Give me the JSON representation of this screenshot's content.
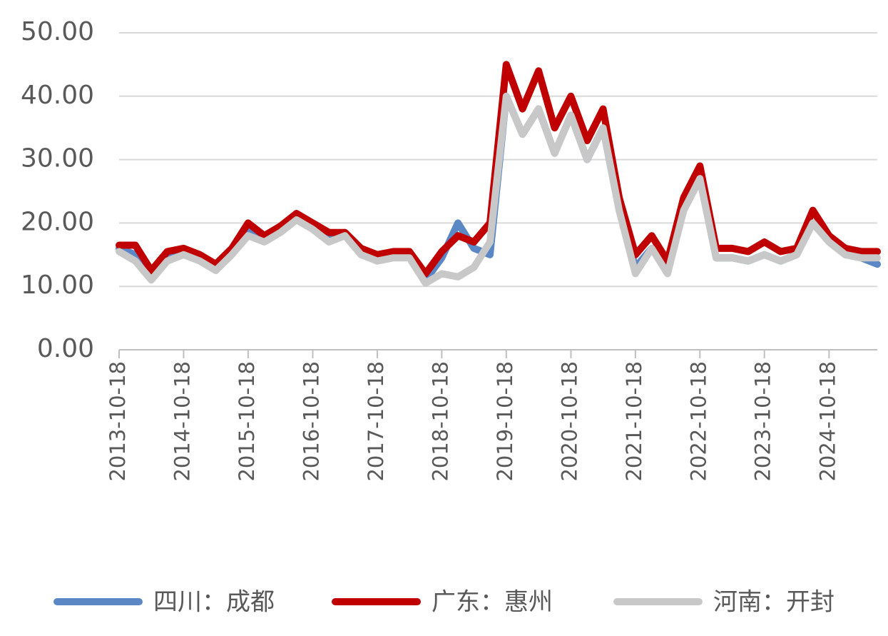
{
  "chart_data": {
    "type": "line",
    "x": [
      "2013-10-18",
      "2014-01-18",
      "2014-04-18",
      "2014-07-18",
      "2014-10-18",
      "2015-01-18",
      "2015-04-18",
      "2015-07-18",
      "2015-10-18",
      "2016-01-18",
      "2016-04-18",
      "2016-07-18",
      "2016-10-18",
      "2017-01-18",
      "2017-04-18",
      "2017-07-18",
      "2017-10-18",
      "2018-01-18",
      "2018-04-18",
      "2018-07-18",
      "2018-10-18",
      "2019-01-18",
      "2019-04-18",
      "2019-07-18",
      "2019-10-18",
      "2020-01-18",
      "2020-04-18",
      "2020-07-18",
      "2020-10-18",
      "2021-01-18",
      "2021-04-18",
      "2021-07-18",
      "2021-10-18",
      "2022-01-18",
      "2022-04-18",
      "2022-07-18",
      "2022-10-18",
      "2023-01-18",
      "2023-04-18",
      "2023-07-18",
      "2023-10-18",
      "2024-01-18",
      "2024-04-18",
      "2024-07-18",
      "2024-10-18",
      "2025-01-18",
      "2025-04-18",
      "2025-07-18"
    ],
    "series": [
      {
        "name": "四川：成都",
        "color": "#5b87c5",
        "values": [
          16,
          15,
          12,
          15,
          15.5,
          14.5,
          13,
          15.5,
          19,
          17.5,
          19.5,
          21,
          19.5,
          18,
          18.5,
          16,
          14.5,
          15,
          15,
          11,
          14.5,
          20,
          16,
          15,
          40,
          34,
          38,
          31,
          37,
          30,
          35,
          22,
          13,
          16,
          12.5,
          22,
          27,
          14.5,
          14.5,
          14,
          15,
          14,
          15,
          20,
          17,
          15,
          14.5,
          13.5
        ]
      },
      {
        "name": "广东：惠州",
        "color": "#c00000",
        "values": [
          16.5,
          16.5,
          12.5,
          15.5,
          16,
          15,
          13.5,
          16,
          20,
          18,
          19.5,
          21.5,
          20,
          18.5,
          18.5,
          16,
          15,
          15.5,
          15.5,
          12,
          15.5,
          18,
          17,
          20,
          45,
          38,
          44,
          35,
          40,
          33,
          38,
          24,
          15,
          18,
          14,
          24,
          29,
          16,
          16,
          15.5,
          17,
          15.5,
          16,
          22,
          18,
          16,
          15.5,
          15.5
        ]
      },
      {
        "name": "河南：开封",
        "color": "#c8c8c8",
        "values": [
          15.5,
          14,
          11,
          14,
          15,
          14,
          12.5,
          15,
          18,
          17,
          18.5,
          20.5,
          19,
          17,
          18,
          15,
          14,
          14.5,
          14.5,
          10.5,
          12,
          11.5,
          13,
          17,
          40,
          34,
          38,
          31,
          37,
          30,
          35,
          22,
          12,
          16,
          12,
          22,
          27,
          14.5,
          14.5,
          14,
          15,
          14,
          15,
          20,
          17,
          15,
          14.5,
          14.5
        ]
      }
    ],
    "xlim": [
      "2013-10-18",
      "2025-07-18"
    ],
    "xticks": [
      "2013-10-18",
      "2014-10-18",
      "2015-10-18",
      "2016-10-18",
      "2017-10-18",
      "2018-10-18",
      "2019-10-18",
      "2020-10-18",
      "2021-10-18",
      "2022-10-18",
      "2023-10-18",
      "2024-10-18"
    ],
    "ylim": [
      0,
      50
    ],
    "yticks": [
      {
        "value": 0,
        "label": "0.00"
      },
      {
        "value": 10,
        "label": "10.00"
      },
      {
        "value": 20,
        "label": "20.00"
      },
      {
        "value": 30,
        "label": "30.00"
      },
      {
        "value": 40,
        "label": "40.00"
      },
      {
        "value": 50,
        "label": "50.00"
      }
    ],
    "grid": true
  }
}
